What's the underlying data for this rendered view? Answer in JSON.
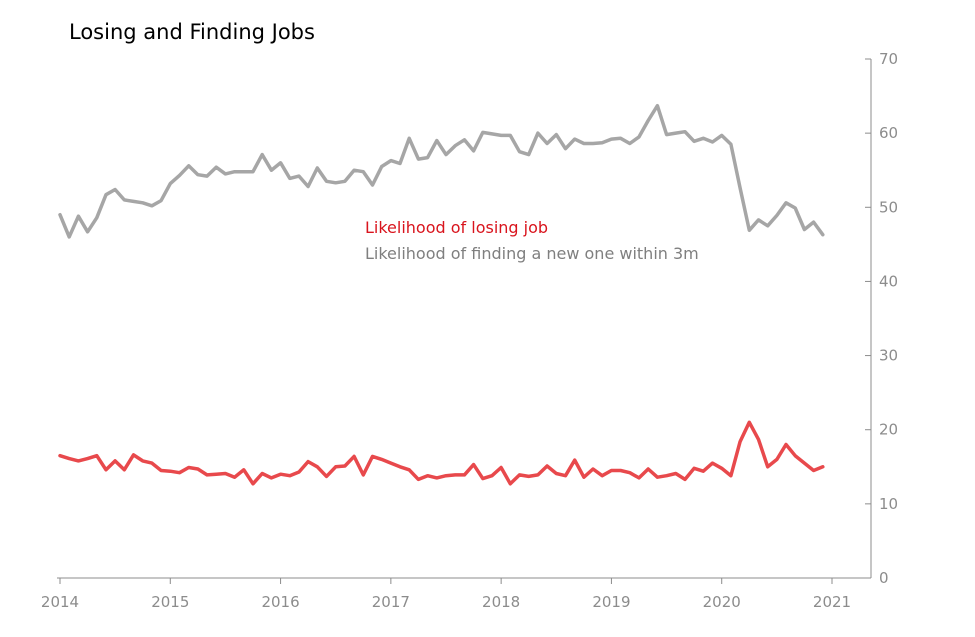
{
  "colors": {
    "losing": "#e8494c",
    "finding": "#a6a6a6",
    "legend_losing": "#d9141d",
    "legend_finding": "#7f7f7f",
    "axis": "#8c8c8c"
  },
  "chart_data": {
    "type": "line",
    "title": "Losing and Finding Jobs",
    "xlabel": "",
    "ylabel": "",
    "ylim": [
      0,
      70
    ],
    "xlim": [
      2014,
      2021
    ],
    "y_axis_position": "right",
    "grid": false,
    "legend_placement": "center",
    "x_ticks": [
      "2014",
      "2015",
      "2016",
      "2017",
      "2018",
      "2019",
      "2020",
      "2021"
    ],
    "y_ticks": [
      "0",
      "10",
      "20",
      "30",
      "40",
      "50",
      "60",
      "70"
    ],
    "series": [
      {
        "name": "Likelihood of losing job",
        "color": "#e8494c",
        "x_start": 2014.0,
        "x_step_months": 1,
        "values": [
          16.5,
          16.1,
          15.8,
          16.1,
          16.5,
          14.6,
          15.8,
          14.6,
          16.6,
          15.8,
          15.5,
          14.5,
          14.4,
          14.2,
          14.9,
          14.7,
          13.9,
          14.0,
          14.1,
          13.6,
          14.6,
          12.7,
          14.1,
          13.5,
          14.0,
          13.8,
          14.3,
          15.7,
          15.0,
          13.7,
          15.0,
          15.1,
          16.4,
          13.9,
          16.4,
          16.0,
          15.5,
          15.0,
          14.6,
          13.3,
          13.8,
          13.5,
          13.8,
          13.9,
          13.9,
          15.3,
          13.4,
          13.8,
          14.9,
          12.7,
          13.9,
          13.7,
          13.9,
          15.1,
          14.1,
          13.8,
          15.9,
          13.6,
          14.7,
          13.8,
          14.5,
          14.5,
          14.2,
          13.5,
          14.7,
          13.6,
          13.8,
          14.1,
          13.3,
          14.8,
          14.4,
          15.5,
          14.8,
          13.8,
          18.4,
          21.0,
          18.7,
          15.0,
          16.0,
          18.0,
          16.5,
          15.5,
          14.5,
          15.0
        ]
      },
      {
        "name": "Likelihood of finding a new one within 3m",
        "color": "#a6a6a6",
        "x_start": 2014.0,
        "x_step_months": 1,
        "values": [
          49.0,
          46.0,
          48.8,
          46.7,
          48.6,
          51.7,
          52.4,
          51.0,
          50.8,
          50.6,
          50.2,
          50.9,
          53.2,
          54.3,
          55.6,
          54.4,
          54.2,
          55.4,
          54.5,
          54.8,
          54.8,
          54.8,
          57.1,
          55.0,
          56.0,
          53.9,
          54.2,
          52.8,
          55.3,
          53.5,
          53.3,
          53.5,
          55.0,
          54.8,
          53.0,
          55.5,
          56.3,
          55.9,
          59.3,
          56.5,
          56.7,
          59.0,
          57.1,
          58.3,
          59.1,
          57.6,
          60.1,
          59.9,
          59.7,
          59.7,
          57.5,
          57.1,
          60.0,
          58.6,
          59.8,
          57.9,
          59.2,
          58.6,
          58.6,
          58.7,
          59.2,
          59.3,
          58.6,
          59.5,
          61.7,
          63.7,
          59.8,
          60.0,
          60.2,
          58.9,
          59.3,
          58.8,
          59.7,
          58.5,
          52.6,
          46.9,
          48.3,
          47.5,
          48.9,
          50.6,
          49.9,
          47.0,
          48.0,
          46.3
        ]
      }
    ]
  }
}
